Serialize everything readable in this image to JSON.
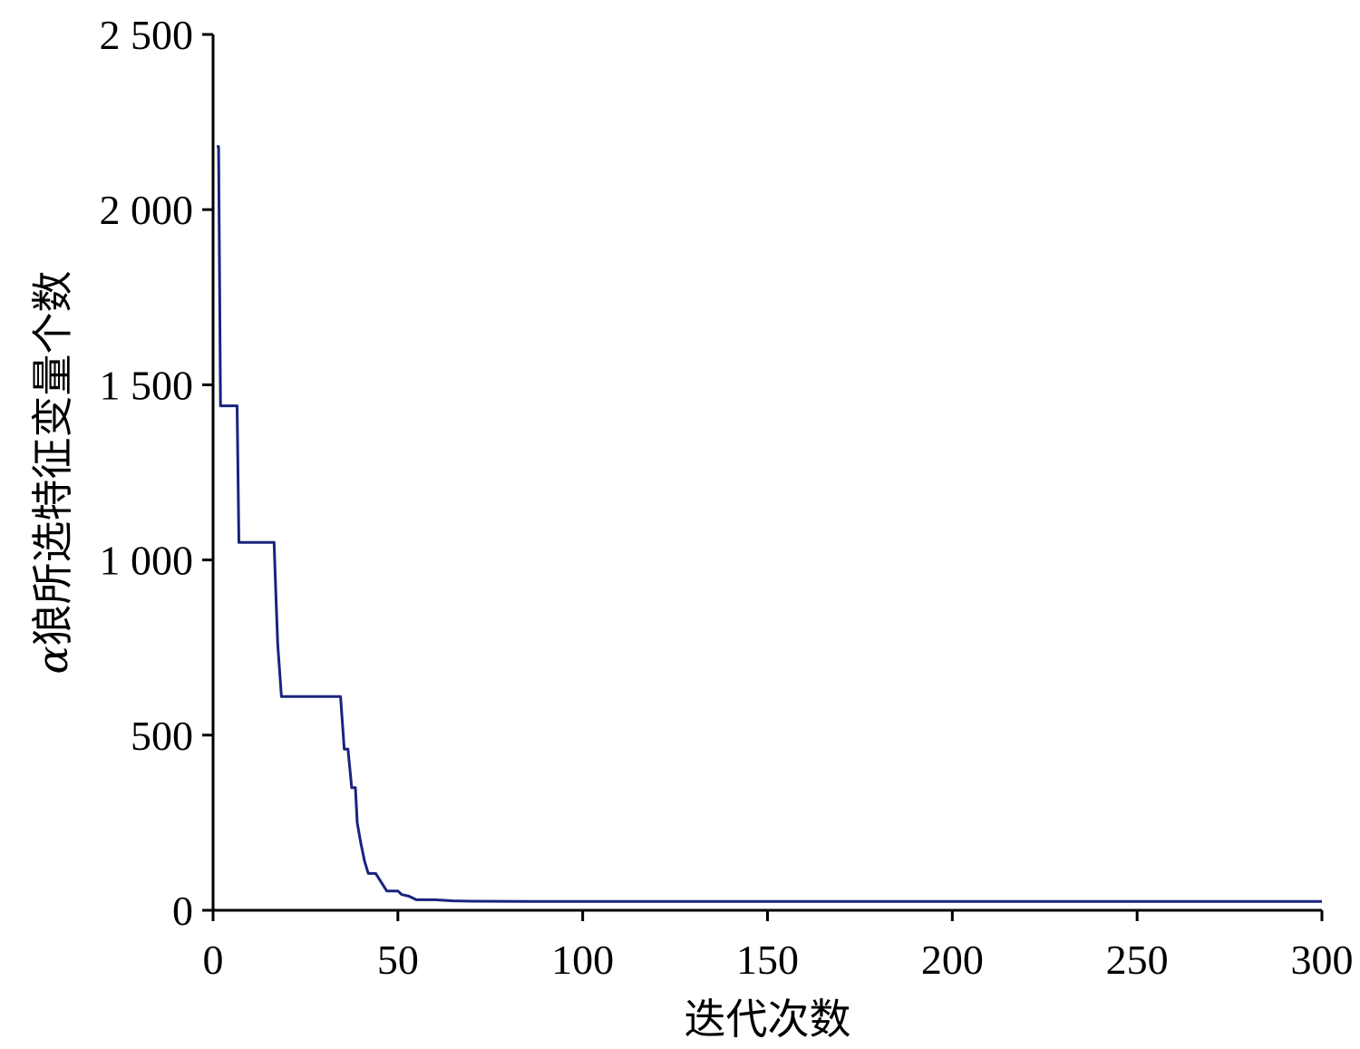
{
  "chart_data": {
    "type": "line",
    "title": "",
    "xlabel": "迭代次数",
    "ylabel_symbol": "α",
    "ylabel_text": "狼所选特征变量个数",
    "xlim": [
      0,
      300
    ],
    "ylim": [
      0,
      2500
    ],
    "xticks": [
      0,
      50,
      100,
      150,
      200,
      250,
      300
    ],
    "xtick_labels": [
      "0",
      "50",
      "100",
      "150",
      "200",
      "250",
      "300"
    ],
    "yticks": [
      0,
      500,
      1000,
      1500,
      2000,
      2500
    ],
    "ytick_labels": [
      "0",
      "500",
      "1 000",
      "1 500",
      "2 000",
      "2 500"
    ],
    "grid": false,
    "legend": "none",
    "series": [
      {
        "color": "#1a237e",
        "points": [
          [
            1,
            2180
          ],
          [
            1.5,
            2180
          ],
          [
            2,
            1440
          ],
          [
            6.5,
            1440
          ],
          [
            7,
            1050
          ],
          [
            16.5,
            1050
          ],
          [
            17,
            900
          ],
          [
            17.5,
            760
          ],
          [
            18.5,
            610
          ],
          [
            34.5,
            610
          ],
          [
            35.5,
            460
          ],
          [
            36.5,
            460
          ],
          [
            37.5,
            350
          ],
          [
            38.5,
            350
          ],
          [
            39,
            250
          ],
          [
            40,
            190
          ],
          [
            41,
            140
          ],
          [
            42,
            105
          ],
          [
            44,
            105
          ],
          [
            47,
            55
          ],
          [
            50,
            55
          ],
          [
            51,
            45
          ],
          [
            53,
            40
          ],
          [
            55,
            30
          ],
          [
            60,
            30
          ],
          [
            65,
            27
          ],
          [
            70,
            26
          ],
          [
            85,
            25
          ],
          [
            100,
            25
          ],
          [
            150,
            25
          ],
          [
            200,
            25
          ],
          [
            250,
            25
          ],
          [
            300,
            25
          ]
        ]
      }
    ]
  }
}
